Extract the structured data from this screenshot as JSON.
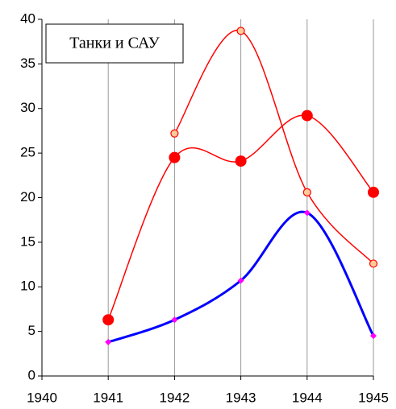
{
  "chart_data": {
    "type": "line",
    "title": "Танки и САУ",
    "x": [
      1941,
      1942,
      1943,
      1944,
      1945
    ],
    "series": [
      {
        "name": null,
        "color": "#ff0000",
        "marker": "big-dot",
        "values": [
          6.3,
          24.5,
          24.1,
          29.2,
          20.6
        ]
      },
      {
        "name": null,
        "color": "#ff0000",
        "marker": "ring",
        "values": [
          null,
          27.2,
          38.7,
          20.6,
          12.6
        ]
      },
      {
        "name": null,
        "color": "#0000ff",
        "marker": "diamond",
        "values": [
          3.8,
          6.3,
          10.7,
          18.3,
          4.5
        ]
      }
    ],
    "xlim": [
      1940,
      1945
    ],
    "xticks": [
      1940,
      1941,
      1942,
      1943,
      1944,
      1945
    ],
    "ylim": [
      0,
      40
    ],
    "yticks": [
      0,
      5,
      10,
      15,
      20,
      25,
      30,
      35,
      40
    ],
    "grid": "x",
    "smooth": true
  }
}
